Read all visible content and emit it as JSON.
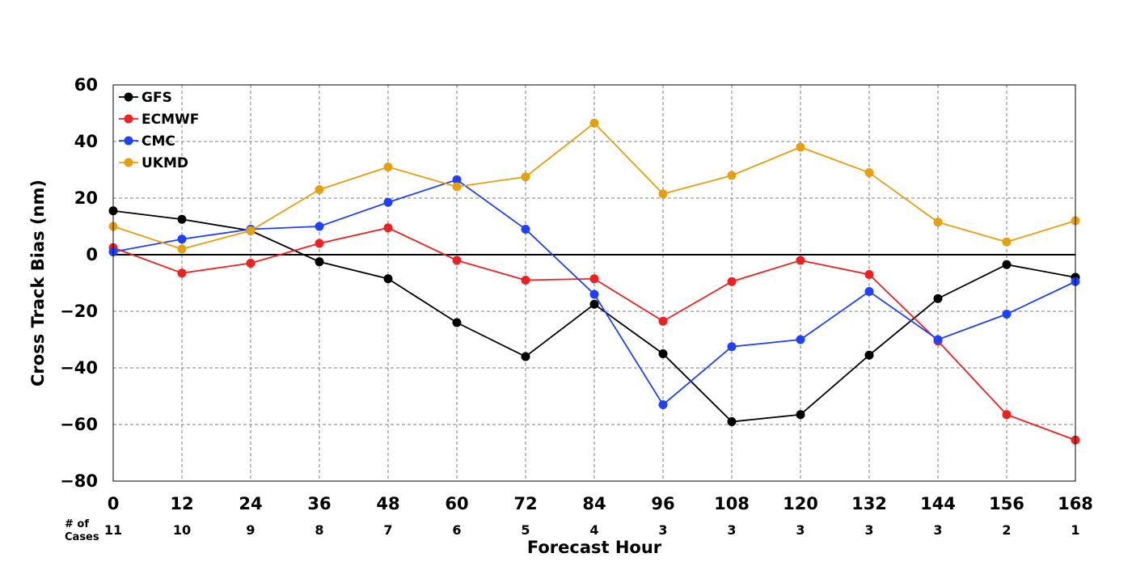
{
  "chart_data": {
    "type": "line",
    "xlabel": "Forecast Hour",
    "ylabel": "Cross Track Bias (nm)",
    "x": [
      0,
      12,
      24,
      36,
      48,
      60,
      72,
      84,
      96,
      108,
      120,
      132,
      144,
      156,
      168
    ],
    "xlim": [
      0,
      168
    ],
    "ylim": [
      -80,
      60
    ],
    "yticks": [
      60,
      40,
      20,
      0,
      -20,
      -40,
      -60,
      -80
    ],
    "ytick_labels": [
      "60",
      "40",
      "20",
      "0",
      "−20",
      "−40",
      "−60",
      "−80"
    ],
    "grid": true,
    "legend_position": "top-left",
    "cases_label": [
      "# of",
      "Cases"
    ],
    "cases": [
      11,
      10,
      9,
      8,
      7,
      6,
      5,
      4,
      3,
      3,
      3,
      3,
      3,
      2,
      1
    ],
    "series": [
      {
        "name": "GFS",
        "color": "#000000",
        "values": [
          15.5,
          12.5,
          8.5,
          -2.5,
          -8.5,
          -24,
          -36,
          -17.5,
          -35,
          -59,
          -56.5,
          -35.5,
          -15.5,
          -3.5,
          -8
        ]
      },
      {
        "name": "ECMWF",
        "color": "#f02020",
        "values": [
          2.5,
          -6.5,
          -3,
          4,
          9.5,
          -2,
          -9,
          -8.5,
          -23.5,
          -9.5,
          -2,
          -7,
          -30.5,
          -56.5,
          -65.5
        ]
      },
      {
        "name": "CMC",
        "color": "#2040ff",
        "values": [
          1,
          5.5,
          9,
          10,
          18.5,
          26.5,
          9,
          -14,
          -53,
          -32.5,
          -30,
          -13,
          -30,
          -21,
          -9.5
        ]
      },
      {
        "name": "UKMD",
        "color": "#e6a00e",
        "values": [
          10,
          2,
          8.5,
          23,
          31,
          24,
          27.5,
          46.5,
          21.5,
          28,
          38,
          29,
          11.5,
          4.5,
          12
        ]
      }
    ]
  }
}
